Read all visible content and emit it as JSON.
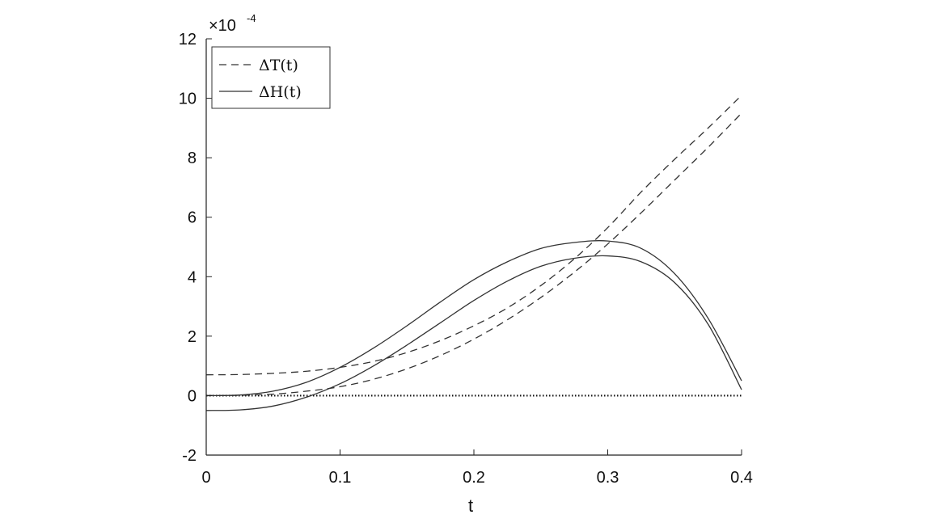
{
  "chart_data": {
    "type": "line",
    "xlabel": "t",
    "ylabel": "",
    "xlim": [
      0,
      0.4
    ],
    "ylim": [
      -2,
      12
    ],
    "xticks": [
      0,
      0.1,
      0.2,
      0.3,
      0.4
    ],
    "xtick_labels": [
      "0",
      "0.1",
      "0.2",
      "0.3",
      "0.4"
    ],
    "yticks": [
      -2,
      0,
      2,
      4,
      6,
      8,
      10,
      12
    ],
    "ytick_labels": [
      "-2",
      "0",
      "2",
      "4",
      "6",
      "8",
      "10",
      "12"
    ],
    "y_multiplier": {
      "base": "×10",
      "exponent": "-4"
    },
    "grid": false,
    "legend_position": "top-left",
    "legend": [
      {
        "label": "ΔT(t)",
        "style": "dashed"
      },
      {
        "label": "ΔH(t)",
        "style": "solid"
      }
    ],
    "reference_line": {
      "y": 0,
      "style": "dotted"
    },
    "x": [
      0,
      0.025,
      0.05,
      0.075,
      0.1,
      0.125,
      0.15,
      0.175,
      0.2,
      0.225,
      0.25,
      0.275,
      0.3,
      0.325,
      0.35,
      0.375,
      0.4
    ],
    "series": [
      {
        "legend_index": 0,
        "style": "dashed",
        "values": [
          0.7,
          0.71,
          0.75,
          0.82,
          0.95,
          1.15,
          1.45,
          1.85,
          2.35,
          2.95,
          3.7,
          4.6,
          5.65,
          6.85,
          7.95,
          9.0,
          10.1
        ]
      },
      {
        "legend_index": 0,
        "style": "dashed",
        "values": [
          0,
          0.01,
          0.05,
          0.15,
          0.3,
          0.55,
          0.9,
          1.35,
          1.9,
          2.55,
          3.3,
          4.15,
          5.1,
          6.15,
          7.25,
          8.35,
          9.5
        ]
      },
      {
        "legend_index": 1,
        "style": "solid",
        "values": [
          0,
          0.02,
          0.15,
          0.45,
          0.95,
          1.6,
          2.35,
          3.15,
          3.9,
          4.5,
          4.95,
          5.15,
          5.2,
          4.95,
          4.1,
          2.6,
          0.5
        ]
      },
      {
        "legend_index": 1,
        "style": "solid",
        "values": [
          -0.5,
          -0.48,
          -0.35,
          -0.05,
          0.4,
          1.0,
          1.7,
          2.45,
          3.2,
          3.85,
          4.35,
          4.62,
          4.7,
          4.5,
          3.8,
          2.4,
          0.2
        ]
      }
    ]
  }
}
